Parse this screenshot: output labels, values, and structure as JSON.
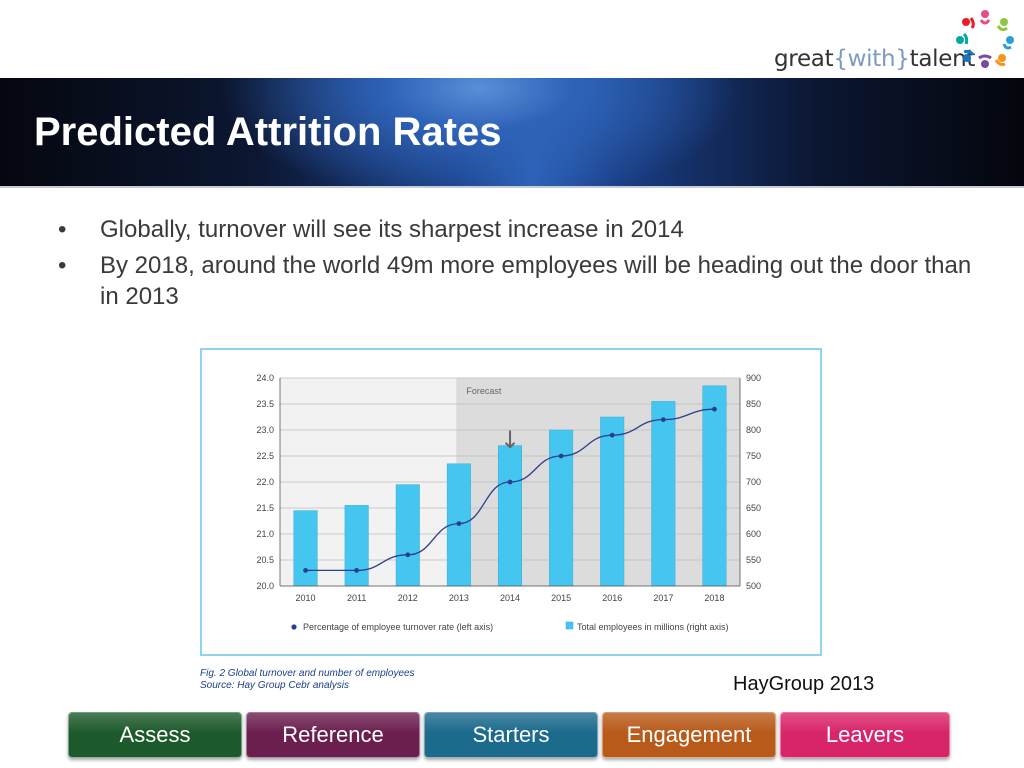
{
  "logo": {
    "pre": "great",
    "brace_open": "{",
    "mid": "with",
    "brace_close": "}",
    "post": "talent"
  },
  "slide": {
    "title": "Predicted Attrition Rates",
    "bullets": [
      "Globally, turnover will see its sharpest increase in 2014",
      "By 2018, around the world 49m more employees will be heading out the door than in 2013"
    ],
    "bullet_char": "•"
  },
  "chart_data": {
    "type": "bar",
    "categories": [
      "2010",
      "2011",
      "2012",
      "2013",
      "2014",
      "2015",
      "2016",
      "2017",
      "2018"
    ],
    "series": [
      {
        "name": "Total employees in millions (right axis)",
        "type": "bar",
        "axis": "right",
        "color": "#45c6f0",
        "values": [
          645,
          655,
          695,
          735,
          770,
          800,
          825,
          855,
          885
        ]
      },
      {
        "name": "Percentage of employee turnover rate (left axis)",
        "type": "line",
        "axis": "left",
        "color": "#2b3f8c",
        "values": [
          20.3,
          20.3,
          20.6,
          21.2,
          22.0,
          22.5,
          22.9,
          23.2,
          23.4
        ]
      }
    ],
    "left_axis": {
      "ylim": [
        20.0,
        24.0
      ],
      "ticks": [
        "20.0",
        "20.5",
        "21.0",
        "21.5",
        "22.0",
        "22.5",
        "23.0",
        "23.5",
        "24.0"
      ]
    },
    "right_axis": {
      "ylim": [
        500,
        900
      ],
      "ticks": [
        "500",
        "550",
        "600",
        "650",
        "700",
        "750",
        "800",
        "850",
        "900"
      ]
    },
    "forecast_label": "Forecast",
    "forecast_from": "2013",
    "arrow_marker": "↓",
    "arrow_at": "2014",
    "grid": true,
    "legend_placement": "bottom",
    "caption_line1": "Fig. 2 Global turnover and number of employees",
    "caption_line2": "Source: Hay Group Cebr analysis"
  },
  "source": "HayGroup 2013",
  "nav": [
    {
      "label": "Assess",
      "color": "#1d5a2b"
    },
    {
      "label": "Reference",
      "color": "#6b1f4f"
    },
    {
      "label": "Starters",
      "color": "#1c6a8c"
    },
    {
      "label": "Engagement",
      "color": "#b85a1a"
    },
    {
      "label": "Leavers",
      "color": "#d8256a"
    }
  ]
}
